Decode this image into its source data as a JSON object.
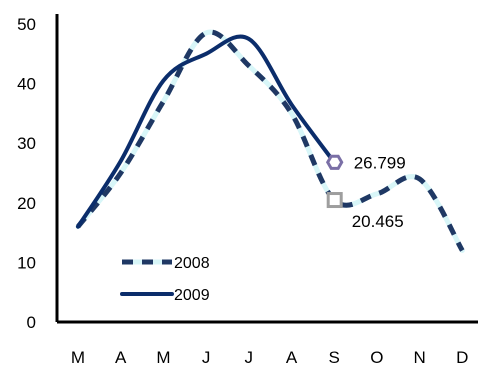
{
  "chart_data": {
    "type": "line",
    "categories": [
      "M",
      "A",
      "M",
      "J",
      "J",
      "A",
      "S",
      "O",
      "N",
      "D"
    ],
    "ylim": [
      0,
      50
    ],
    "yticks": [
      0,
      10,
      20,
      30,
      40,
      50
    ],
    "grid": false,
    "legend_position": "bottom-left",
    "series": [
      {
        "name": "2008",
        "values": [
          16,
          25,
          37,
          48.5,
          43,
          35,
          20.465,
          21.5,
          24,
          12
        ],
        "style": "dashed",
        "color": "#1f3864",
        "highlight_color": "#d8f6f8"
      },
      {
        "name": "2009",
        "values": [
          16,
          27,
          40.5,
          45,
          47.5,
          36.5,
          26.799,
          null,
          null,
          null
        ],
        "style": "solid",
        "color": "#0b2d6b"
      }
    ],
    "annotations": [
      {
        "series": "2009",
        "category_index": 6,
        "label": "26.799",
        "marker": "hexagon",
        "marker_color": "#7a6fa6"
      },
      {
        "series": "2008",
        "category_index": 6,
        "label": "20.465",
        "marker": "square",
        "marker_color": "#9e9e9e"
      }
    ]
  }
}
